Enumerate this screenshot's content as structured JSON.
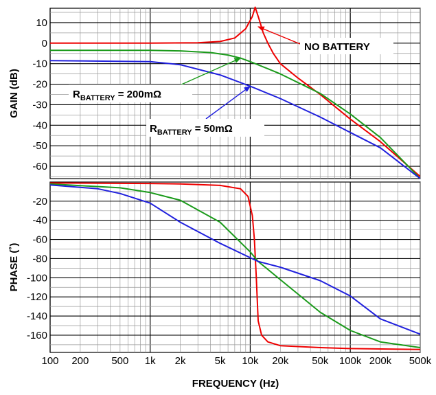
{
  "chart_data": [
    {
      "type": "line",
      "x_scale": "log",
      "xlim": [
        100,
        500000
      ],
      "ylim": [
        -66,
        17
      ],
      "ylabel": "GAIN (dB)",
      "yticks": [
        10,
        0,
        -10,
        -20,
        -30,
        -40,
        -50,
        -60
      ],
      "ytick_labels": [
        "10",
        "0",
        "-10",
        "-20",
        "-30",
        "-40",
        "-50",
        "-60"
      ],
      "grid": true,
      "series": [
        {
          "name": "NO BATTERY",
          "color": "#ee0000",
          "points": [
            [
              100,
              0
            ],
            [
              1000,
              0
            ],
            [
              3000,
              0.2
            ],
            [
              5000,
              0.8
            ],
            [
              7000,
              2.5
            ],
            [
              9000,
              7
            ],
            [
              10500,
              13
            ],
            [
              11200,
              17.5
            ],
            [
              12200,
              12
            ],
            [
              13500,
              5
            ],
            [
              15000,
              0
            ],
            [
              17000,
              -5
            ],
            [
              20000,
              -10
            ],
            [
              30000,
              -17
            ],
            [
              50000,
              -25
            ],
            [
              100000,
              -37
            ],
            [
              200000,
              -48
            ],
            [
              500000,
              -65
            ]
          ]
        },
        {
          "name": "RBATTERY = 200mΩ",
          "color": "#1a9a1a",
          "points": [
            [
              100,
              -3.5
            ],
            [
              1000,
              -3.5
            ],
            [
              2000,
              -3.8
            ],
            [
              4000,
              -4.6
            ],
            [
              6000,
              -5.8
            ],
            [
              8000,
              -7.3
            ],
            [
              10000,
              -9
            ],
            [
              15000,
              -12.5
            ],
            [
              20000,
              -15
            ],
            [
              50000,
              -24.5
            ],
            [
              100000,
              -34.5
            ],
            [
              200000,
              -46
            ],
            [
              500000,
              -66
            ]
          ]
        },
        {
          "name": "RBATTERY = 50mΩ",
          "color": "#2020dd",
          "points": [
            [
              100,
              -8.5
            ],
            [
              1000,
              -9
            ],
            [
              2000,
              -10.5
            ],
            [
              5000,
              -15.5
            ],
            [
              10000,
              -21
            ],
            [
              20000,
              -27
            ],
            [
              50000,
              -36
            ],
            [
              100000,
              -43.5
            ],
            [
              200000,
              -51
            ],
            [
              500000,
              -66
            ]
          ]
        }
      ],
      "annotations": [
        {
          "text": "NO BATTERY",
          "main": "NO BATTERY",
          "sub": "",
          "tail": "",
          "arrow_to": [
            12000,
            8
          ],
          "color": "#ee0000"
        },
        {
          "text": "RBATTERY = 200mΩ",
          "main": "R",
          "sub": "BATTERY",
          "tail": " = 200mΩ",
          "arrow_to": [
            8000,
            -7.3
          ],
          "color": "#1a9a1a"
        },
        {
          "text": "RBATTERY = 50mΩ",
          "main": "R",
          "sub": "BATTERY",
          "tail": " = 50mΩ",
          "arrow_to": [
            10000,
            -21
          ],
          "color": "#2020dd"
        }
      ]
    },
    {
      "type": "line",
      "x_scale": "log",
      "xlim": [
        100,
        500000
      ],
      "ylim": [
        -178,
        0
      ],
      "xlabel": "FREQUENCY (Hz)",
      "ylabel": "PHASE (˚)",
      "yticks": [
        -20,
        -40,
        -60,
        -80,
        -100,
        -120,
        -140,
        -160
      ],
      "ytick_labels": [
        "-20",
        "-40",
        "-60",
        "-80",
        "-100",
        "-120",
        "-140",
        "-160"
      ],
      "xticks": [
        100,
        200,
        500,
        1000,
        2000,
        5000,
        10000,
        20000,
        50000,
        100000,
        200000,
        500000
      ],
      "xtick_labels": [
        "100",
        "200",
        "500",
        "1k",
        "2k",
        "5k",
        "10k",
        "20k",
        "50k",
        "100k",
        "200k",
        "500k"
      ],
      "grid": true,
      "series": [
        {
          "name": "NO BATTERY",
          "color": "#ee0000",
          "points": [
            [
              100,
              -1
            ],
            [
              1000,
              -1.5
            ],
            [
              2000,
              -2
            ],
            [
              5000,
              -3.5
            ],
            [
              8000,
              -7
            ],
            [
              9500,
              -15
            ],
            [
              10500,
              -35
            ],
            [
              11000,
              -60
            ],
            [
              11500,
              -100
            ],
            [
              12000,
              -145
            ],
            [
              13000,
              -160
            ],
            [
              15000,
              -167
            ],
            [
              20000,
              -171
            ],
            [
              50000,
              -173
            ],
            [
              100000,
              -174
            ],
            [
              500000,
              -175
            ]
          ]
        },
        {
          "name": "RBATTERY = 200mΩ",
          "color": "#1a9a1a",
          "points": [
            [
              100,
              -2
            ],
            [
              500,
              -6
            ],
            [
              1000,
              -11
            ],
            [
              2000,
              -19
            ],
            [
              5000,
              -42
            ],
            [
              10000,
              -73
            ],
            [
              12000,
              -83
            ],
            [
              20000,
              -102
            ],
            [
              50000,
              -136
            ],
            [
              100000,
              -155
            ],
            [
              200000,
              -167
            ],
            [
              500000,
              -173
            ]
          ]
        },
        {
          "name": "RBATTERY = 50mΩ",
          "color": "#2020dd",
          "points": [
            [
              100,
              -3
            ],
            [
              300,
              -7
            ],
            [
              500,
              -12
            ],
            [
              1000,
              -22
            ],
            [
              2000,
              -42
            ],
            [
              5000,
              -64
            ],
            [
              10000,
              -79
            ],
            [
              12000,
              -83
            ],
            [
              20000,
              -89
            ],
            [
              50000,
              -103
            ],
            [
              100000,
              -119
            ],
            [
              200000,
              -143
            ],
            [
              500000,
              -159
            ]
          ]
        }
      ]
    }
  ]
}
